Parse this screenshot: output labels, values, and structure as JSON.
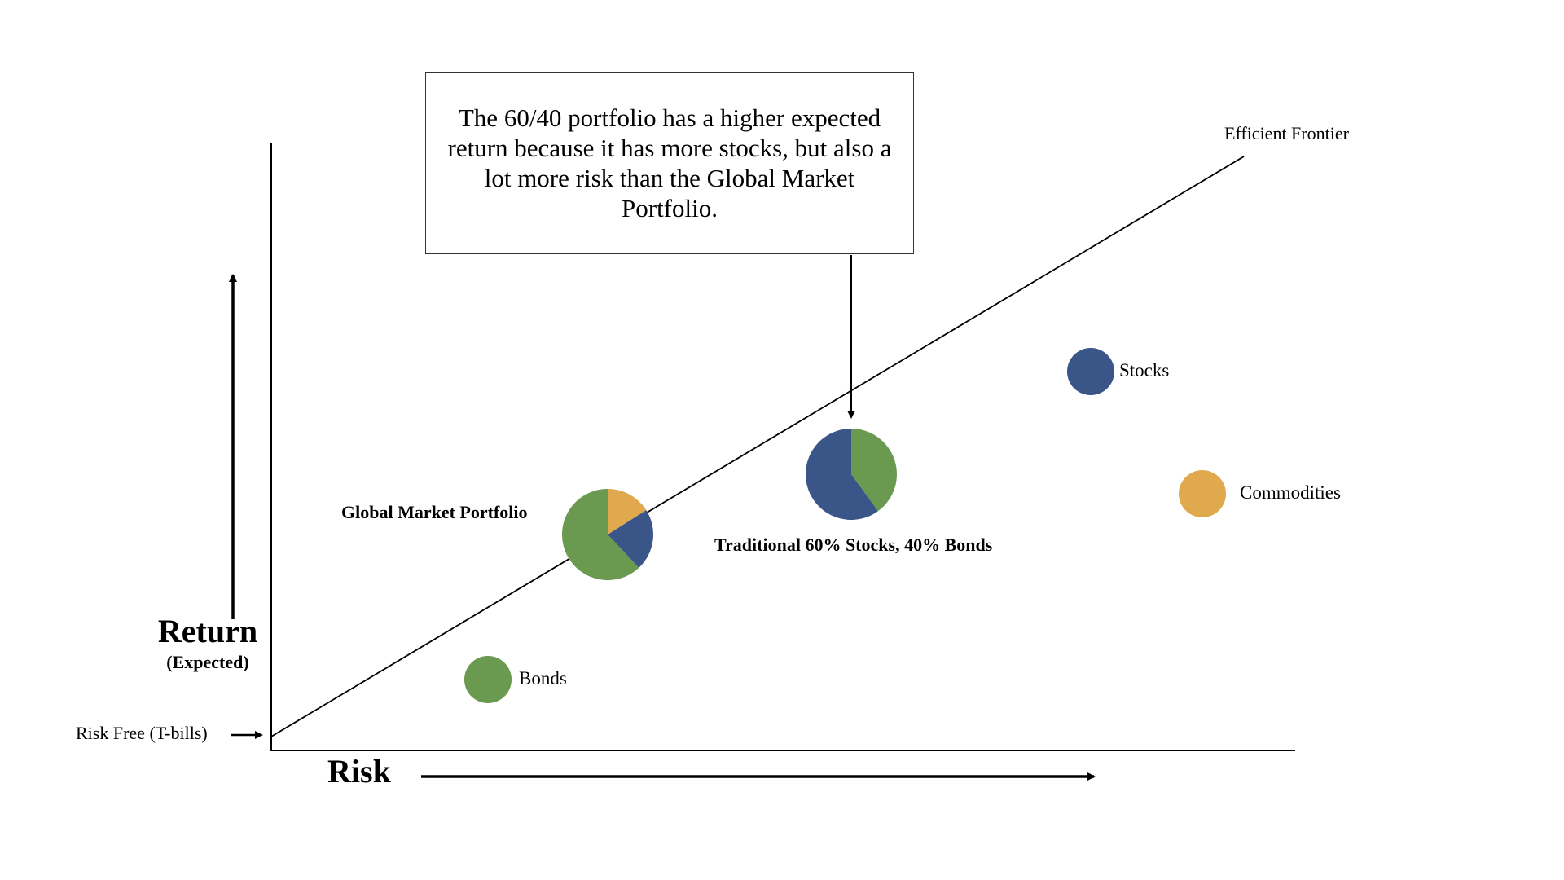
{
  "callout": {
    "text": "The 60/40 portfolio has a higher expected return because it has more stocks, but also a lot more risk than the Global Market Portfolio."
  },
  "labels": {
    "efficient_frontier": "Efficient Frontier",
    "stocks": "Stocks",
    "commodities": "Commodities",
    "bonds": "Bonds",
    "global_market_portfolio": "Global Market Portfolio",
    "traditional_60_40": "Traditional 60% Stocks, 40% Bonds",
    "risk_free": "Risk Free (T-bills)",
    "return_title": "Return",
    "return_subtitle": "(Expected)",
    "risk_title": "Risk"
  },
  "colors": {
    "stocks": "#3a5588",
    "bonds": "#6a9950",
    "commodities": "#e0a94e",
    "line": "#000000"
  },
  "portfolios": {
    "global_market": [
      {
        "asset": "bonds",
        "share": 0.62
      },
      {
        "asset": "stocks",
        "share": 0.22
      },
      {
        "asset": "commodities",
        "share": 0.16
      }
    ],
    "traditional_60_40": [
      {
        "asset": "stocks",
        "share": 0.6
      },
      {
        "asset": "bonds",
        "share": 0.4
      }
    ]
  }
}
